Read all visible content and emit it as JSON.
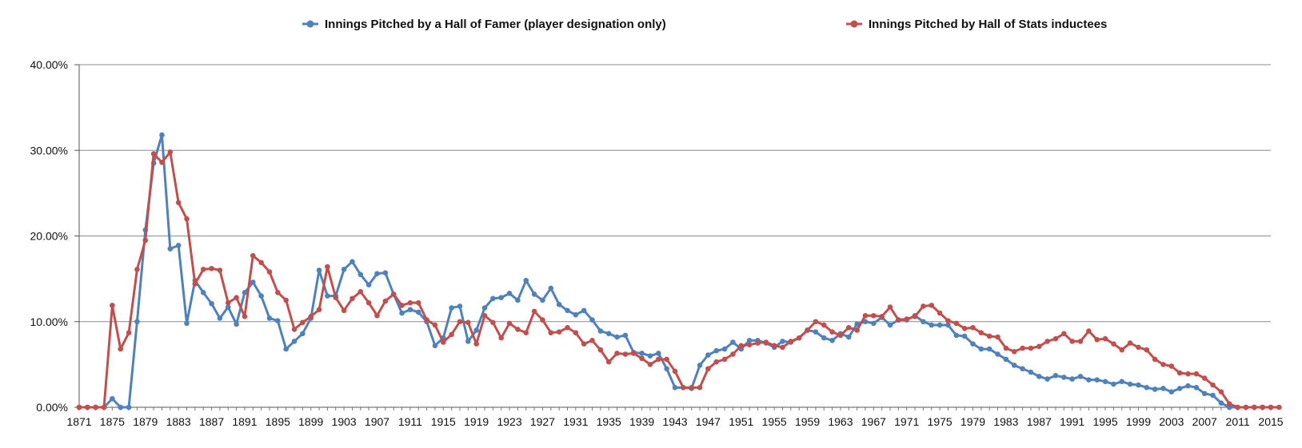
{
  "chart_data": {
    "type": "line",
    "title": "",
    "xlabel": "",
    "ylabel": "",
    "x_range": [
      1871,
      2015
    ],
    "ylim": [
      0,
      40
    ],
    "y_ticks": [
      "0.00%",
      "10.00%",
      "20.00%",
      "30.00%",
      "40.00%"
    ],
    "x_ticks": [
      "1871",
      "1875",
      "1879",
      "1883",
      "1887",
      "1891",
      "1895",
      "1899",
      "1903",
      "1907",
      "1911",
      "1915",
      "1919",
      "1923",
      "1927",
      "1931",
      "1935",
      "1939",
      "1943",
      "1947",
      "1951",
      "1955",
      "1959",
      "1963",
      "1967",
      "1971",
      "1975",
      "1979",
      "1983",
      "1987",
      "1991",
      "1995",
      "1999",
      "2003",
      "2007",
      "2011",
      "2015"
    ],
    "grid": "horizontal",
    "legend_position": "top",
    "series": [
      {
        "name": "Innings Pitched by a Hall of Famer (player designation only)",
        "color": "#4f81bd",
        "values": [
          0.0,
          0.0,
          0.0,
          0.0,
          1.0,
          0.0,
          0.0,
          10.0,
          20.7,
          28.5,
          31.8,
          18.5,
          18.9,
          9.8,
          14.8,
          13.4,
          12.1,
          10.4,
          11.7,
          9.7,
          13.4,
          14.6,
          13.0,
          10.4,
          10.1,
          6.8,
          7.7,
          8.6,
          10.4,
          16.0,
          13.0,
          13.0,
          16.1,
          17.0,
          15.5,
          14.3,
          15.6,
          15.7,
          13.2,
          11.0,
          11.4,
          11.1,
          10.0,
          7.2,
          8.1,
          11.6,
          11.8,
          7.7,
          9.0,
          11.6,
          12.7,
          12.8,
          13.3,
          12.5,
          14.8,
          13.2,
          12.5,
          13.9,
          12.0,
          11.3,
          10.8,
          11.3,
          10.2,
          8.9,
          8.6,
          8.2,
          8.4,
          6.4,
          6.3,
          6.0,
          6.3,
          4.5,
          2.3,
          2.3,
          2.2,
          4.9,
          6.1,
          6.6,
          6.8,
          7.6,
          6.8,
          7.8,
          7.8,
          7.5,
          7.0,
          7.7,
          7.6,
          8.1,
          9.0,
          8.8,
          8.1,
          7.8,
          8.6,
          8.2,
          9.7,
          10.0,
          9.8,
          10.5,
          9.6,
          10.2,
          10.2,
          10.7,
          10.0,
          9.6,
          9.6,
          9.6,
          8.4,
          8.3,
          7.4,
          6.8,
          6.8,
          6.2,
          5.6,
          4.9,
          4.5,
          4.1,
          3.6,
          3.3,
          3.7,
          3.5,
          3.3,
          3.6,
          3.2,
          3.2,
          3.0,
          2.7,
          3.0,
          2.7,
          2.6,
          2.3,
          2.1,
          2.2,
          1.8,
          2.2,
          2.5,
          2.3,
          1.6,
          1.4,
          0.5,
          0.0,
          0.0,
          0.0,
          0.0,
          0.0,
          0.0
        ]
      },
      {
        "name": "Innings Pitched by Hall of Stats inductees",
        "color": "#c0504d",
        "values": [
          0.0,
          0.0,
          0.0,
          0.0,
          11.9,
          6.8,
          8.7,
          16.1,
          19.5,
          29.6,
          28.6,
          29.8,
          23.9,
          22.0,
          14.4,
          16.1,
          16.2,
          16.0,
          12.2,
          12.8,
          10.6,
          17.7,
          16.9,
          15.8,
          13.4,
          12.5,
          9.1,
          9.9,
          10.6,
          11.4,
          16.4,
          12.8,
          11.3,
          12.7,
          13.5,
          12.2,
          10.7,
          12.4,
          13.2,
          11.9,
          12.2,
          12.2,
          10.2,
          9.6,
          7.6,
          8.5,
          10.0,
          9.9,
          7.4,
          10.7,
          9.9,
          8.1,
          9.8,
          9.1,
          8.7,
          11.2,
          10.2,
          8.7,
          8.8,
          9.3,
          8.7,
          7.4,
          7.8,
          6.7,
          5.3,
          6.3,
          6.2,
          6.3,
          5.7,
          5.0,
          5.6,
          5.6,
          4.2,
          2.3,
          2.3,
          2.3,
          4.5,
          5.3,
          5.6,
          6.2,
          7.2,
          7.3,
          7.5,
          7.6,
          7.2,
          7.0,
          7.7,
          8.1,
          9.0,
          10.0,
          9.6,
          8.8,
          8.4,
          9.3,
          9.0,
          10.7,
          10.7,
          10.6,
          11.7,
          10.2,
          10.3,
          10.6,
          11.8,
          11.9,
          11.0,
          10.1,
          9.8,
          9.2,
          9.3,
          8.7,
          8.3,
          8.2,
          6.9,
          6.5,
          6.9,
          6.9,
          7.1,
          7.7,
          8.0,
          8.6,
          7.7,
          7.7,
          8.9,
          7.9,
          8.0,
          7.4,
          6.7,
          7.5,
          7.0,
          6.7,
          5.6,
          5.0,
          4.8,
          4.0,
          3.9,
          3.9,
          3.4,
          2.6,
          1.8,
          0.4,
          0.0,
          0.0,
          0.0,
          0.0,
          0.0,
          0.0
        ]
      }
    ]
  }
}
